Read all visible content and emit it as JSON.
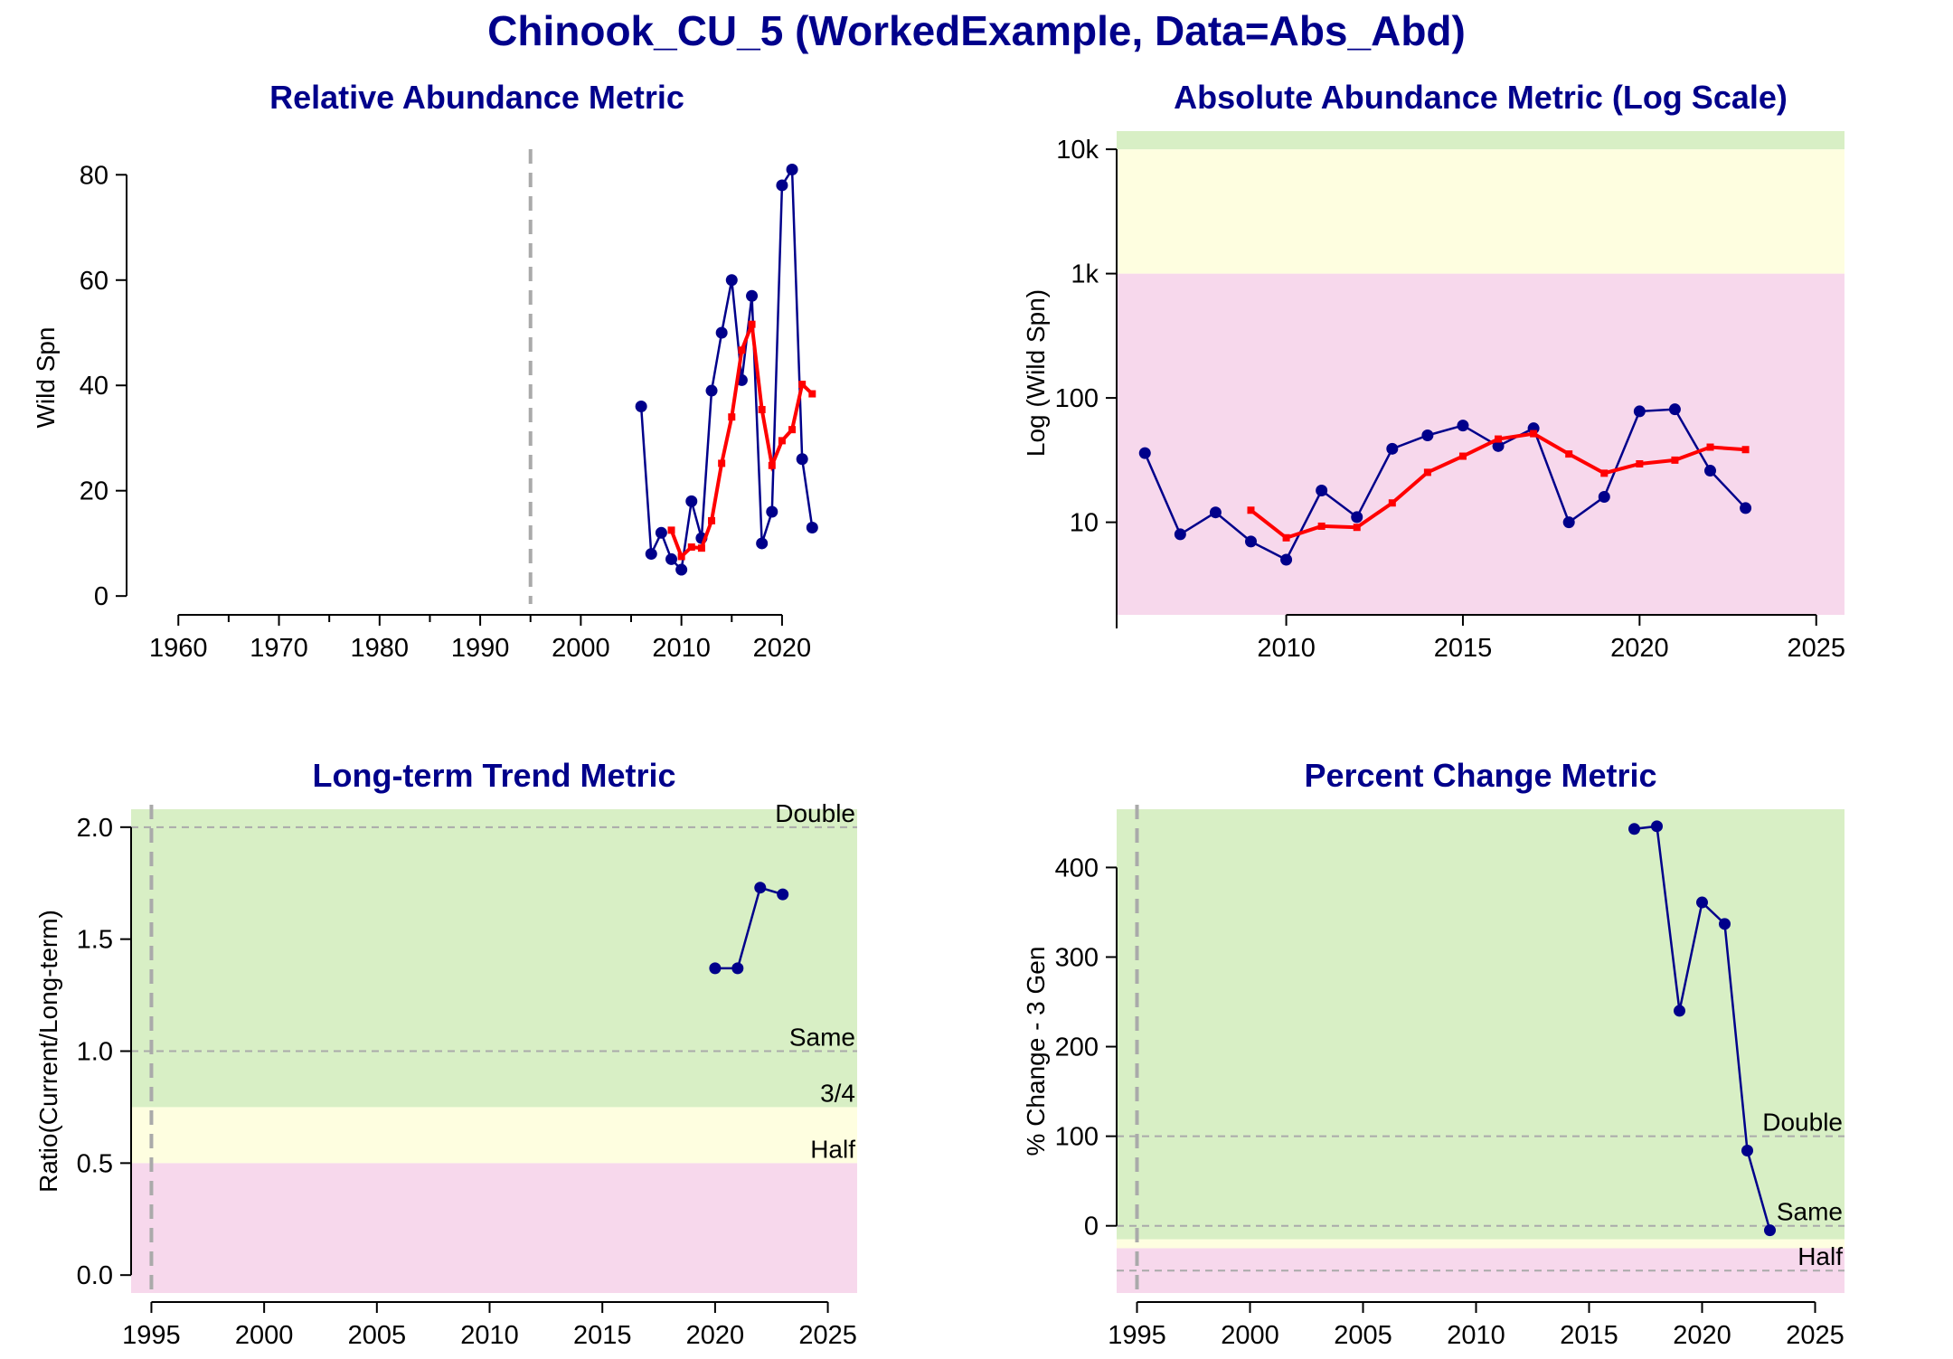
{
  "title": "Chinook_CU_5 (WorkedExample, Data=Abs_Abd)",
  "colors": {
    "series": "#00008b",
    "smooth": "#ff0000",
    "green_zone": "#d8efc5",
    "yellow_zone": "#fefee0",
    "red_zone": "#f7d8ec",
    "ref_line": "#aaaaaa"
  },
  "chart_data": [
    {
      "type": "line",
      "title": "Relative Abundance Metric",
      "xlabel": "",
      "ylabel": "Wild Spn",
      "xlim": [
        1958,
        2024.5
      ],
      "ylim": [
        -1,
        84
      ],
      "xticks": [
        1960,
        1970,
        1980,
        1990,
        2000,
        2010,
        2020
      ],
      "yticks": [
        0,
        20,
        40,
        60,
        80
      ],
      "grid": false,
      "vline": 1995,
      "series": [
        {
          "x": [
            2006,
            2007,
            2008,
            2009,
            2010,
            2011,
            2012,
            2013,
            2014,
            2015,
            2016,
            2017,
            2018,
            2019,
            2020,
            2021,
            2022,
            2023
          ],
          "values": [
            36,
            8,
            12,
            7,
            5,
            18,
            11,
            39,
            50,
            60,
            41,
            57,
            10,
            16,
            78,
            81,
            26,
            13
          ]
        },
        {
          "x": [
            2009,
            2010,
            2011,
            2012,
            2013,
            2014,
            2015,
            2016,
            2017,
            2018,
            2019,
            2020,
            2021,
            2022,
            2023
          ],
          "values": [
            12.5,
            7.5,
            9.3,
            9.1,
            14.3,
            25.2,
            34,
            46.7,
            51.6,
            35.4,
            24.8,
            29.5,
            31.6,
            40.2,
            38.4
          ]
        }
      ]
    },
    {
      "type": "line",
      "title": "Absolute Abundance Metric (Log Scale)",
      "xlabel": "",
      "ylabel": "Log (Wild Spn)",
      "scale_y": "log",
      "xlim": [
        2005.2,
        2025.8
      ],
      "ylim": [
        1.8,
        14000
      ],
      "xticks": [
        2010,
        2015,
        2020,
        2025
      ],
      "yticks": [
        10,
        100,
        1000,
        10000
      ],
      "ytick_labels": [
        "10",
        "100",
        "1k",
        "10k"
      ],
      "grid": false,
      "zones": [
        {
          "from": 1.8,
          "to": 1000,
          "status": "red"
        },
        {
          "from": 1000,
          "to": 10000,
          "status": "yellow"
        },
        {
          "from": 10000,
          "to": 14000,
          "status": "green"
        }
      ],
      "series": [
        {
          "x": [
            2006,
            2007,
            2008,
            2009,
            2010,
            2011,
            2012,
            2013,
            2014,
            2015,
            2016,
            2017,
            2018,
            2019,
            2020,
            2021,
            2022,
            2023
          ],
          "values": [
            36,
            8,
            12,
            7,
            5,
            18,
            11,
            39,
            50,
            60,
            41,
            57,
            10,
            16,
            78,
            81,
            26,
            13
          ]
        },
        {
          "x": [
            2009,
            2010,
            2011,
            2012,
            2013,
            2014,
            2015,
            2016,
            2017,
            2018,
            2019,
            2020,
            2021,
            2022,
            2023
          ],
          "values": [
            12.5,
            7.5,
            9.3,
            9.1,
            14.3,
            25.2,
            34,
            46.7,
            51.6,
            35.4,
            24.8,
            29.5,
            31.6,
            40.2,
            38.4
          ]
        }
      ]
    },
    {
      "type": "line",
      "title": "Long-term Trend Metric",
      "xlabel": "",
      "ylabel": "Ratio(Current/Long-term)",
      "xlim": [
        1994.1,
        2026.3
      ],
      "ylim": [
        -0.08,
        2.08
      ],
      "xticks": [
        1995,
        2000,
        2005,
        2010,
        2015,
        2020,
        2025
      ],
      "yticks": [
        0.0,
        0.5,
        1.0,
        1.5,
        2.0
      ],
      "ytick_labels": [
        "0.0",
        "0.5",
        "1.0",
        "1.5",
        "2.0"
      ],
      "grid": false,
      "vline": 1995,
      "zones": [
        {
          "from": -0.08,
          "to": 0.5,
          "status": "red"
        },
        {
          "from": 0.5,
          "to": 0.75,
          "status": "yellow"
        },
        {
          "from": 0.75,
          "to": 2.08,
          "status": "green"
        }
      ],
      "ref_lines": [
        {
          "y": 2.0,
          "label": "Double",
          "dashed": true
        },
        {
          "y": 1.0,
          "label": "Same",
          "dashed": true
        },
        {
          "y": 0.75,
          "label": "3/4",
          "dashed": false
        },
        {
          "y": 0.5,
          "label": "Half",
          "dashed": false
        }
      ],
      "series": [
        {
          "x": [
            2020,
            2021,
            2022,
            2023
          ],
          "values": [
            1.37,
            1.37,
            1.73,
            1.7
          ]
        }
      ]
    },
    {
      "type": "line",
      "title": "Percent Change Metric",
      "xlabel": "",
      "ylabel": "% Change - 3 Gen",
      "xlim": [
        1994.1,
        2026.3
      ],
      "ylim": [
        -75,
        465
      ],
      "xticks": [
        1995,
        2000,
        2005,
        2010,
        2015,
        2020,
        2025
      ],
      "yticks": [
        0,
        100,
        200,
        300,
        400
      ],
      "grid": false,
      "vline": 1995,
      "zones": [
        {
          "from": -75,
          "to": -25,
          "status": "red"
        },
        {
          "from": -25,
          "to": -15,
          "status": "yellow"
        },
        {
          "from": -15,
          "to": 465,
          "status": "green"
        }
      ],
      "ref_lines": [
        {
          "y": 100,
          "label": "Double",
          "dashed": true
        },
        {
          "y": 0,
          "label": "Same",
          "dashed": true
        },
        {
          "y": -50,
          "label": "Half",
          "dashed": true
        }
      ],
      "series": [
        {
          "x": [
            2017,
            2018,
            2019,
            2020,
            2021,
            2022,
            2023
          ],
          "values": [
            443,
            446,
            240,
            361,
            337,
            84,
            -5
          ]
        }
      ]
    }
  ]
}
